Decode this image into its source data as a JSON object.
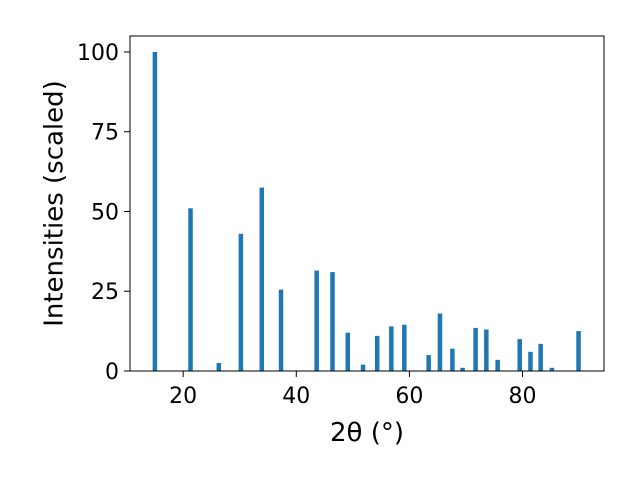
{
  "chart_data": {
    "type": "bar",
    "xlabel": "2θ (°)",
    "ylabel": "Intensities (scaled)",
    "xlim": [
      10.6,
      94.4
    ],
    "ylim": [
      0,
      105
    ],
    "x_ticks": [
      20,
      40,
      60,
      80
    ],
    "y_ticks": [
      0,
      25,
      50,
      75,
      100
    ],
    "bar_color": "#1f77b4",
    "grid": false,
    "legend": "none",
    "series": [
      {
        "x": [
          15.0,
          21.3,
          26.3,
          30.2,
          33.9,
          37.3,
          43.6,
          46.4,
          49.1,
          51.8,
          54.3,
          56.8,
          59.1,
          63.4,
          65.4,
          67.6,
          69.4,
          71.7,
          73.6,
          75.6,
          79.5,
          81.4,
          83.2,
          85.2,
          89.9
        ],
        "values": [
          100,
          51,
          2.5,
          43,
          57.5,
          25.5,
          31.5,
          31,
          12,
          2,
          11,
          14,
          14.5,
          5,
          18,
          7,
          1,
          13.5,
          13,
          3.5,
          10,
          6,
          8.5,
          1,
          12.5
        ]
      }
    ]
  }
}
